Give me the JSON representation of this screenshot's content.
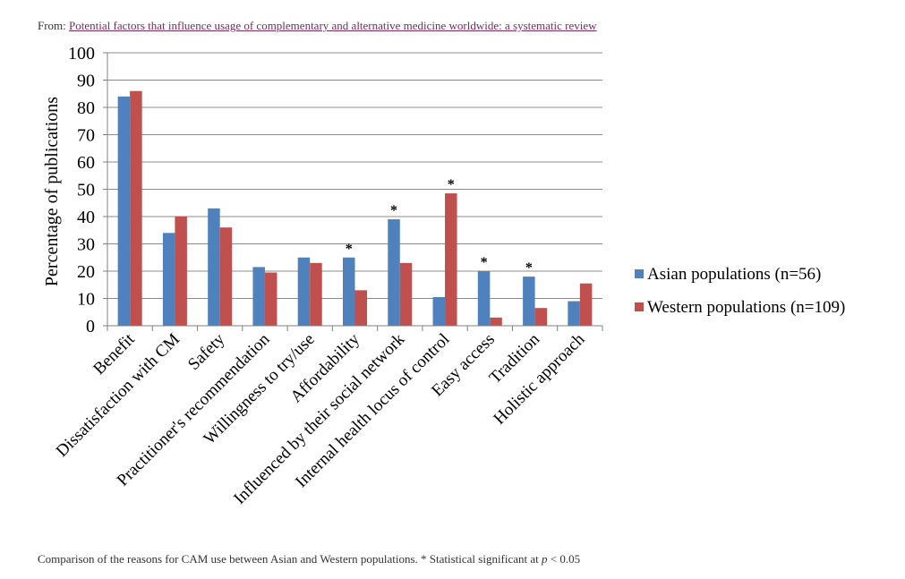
{
  "source": {
    "prefix": "From:",
    "link_text": "Potential factors that influence usage of complementary and alternative medicine worldwide: a systematic review"
  },
  "caption": {
    "text": "Comparison of the reasons for CAM use between Asian and Western populations. * Statistical significant at",
    "p_symbol": "p",
    "threshold": "< 0.05"
  },
  "chart_data": {
    "type": "bar",
    "title": "",
    "xlabel": "",
    "ylabel": "Percentage of publications",
    "ylim": [
      0,
      100
    ],
    "yticks": [
      0,
      10,
      20,
      30,
      40,
      50,
      60,
      70,
      80,
      90,
      100
    ],
    "grid": true,
    "legend_position": "right",
    "categories": [
      "Benefit",
      "Dissatisfaction with CM",
      "Safety",
      "Practitioner's recommendation",
      "Willingness to try/use",
      "Affordability",
      "Influenced by their social network",
      "Internal health locus of control",
      "Easy access",
      "Tradition",
      "Holistic approach"
    ],
    "series": [
      {
        "name": "Asian populations (n=56)",
        "color": "#4f81bd",
        "values": [
          84,
          34,
          43,
          21.5,
          25,
          25,
          39,
          10.5,
          20,
          18,
          9
        ]
      },
      {
        "name": "Western populations (n=109)",
        "color": "#c0504d",
        "values": [
          86,
          40,
          36,
          19.5,
          23,
          13,
          23,
          48.5,
          3,
          6.5,
          15.5
        ]
      }
    ],
    "annotations": [
      {
        "category_index": 5,
        "series_index": 0,
        "text": "*"
      },
      {
        "category_index": 6,
        "series_index": 0,
        "text": "*"
      },
      {
        "category_index": 7,
        "series_index": 1,
        "text": "*"
      },
      {
        "category_index": 8,
        "series_index": 0,
        "text": "*"
      },
      {
        "category_index": 9,
        "series_index": 0,
        "text": "*"
      }
    ]
  }
}
